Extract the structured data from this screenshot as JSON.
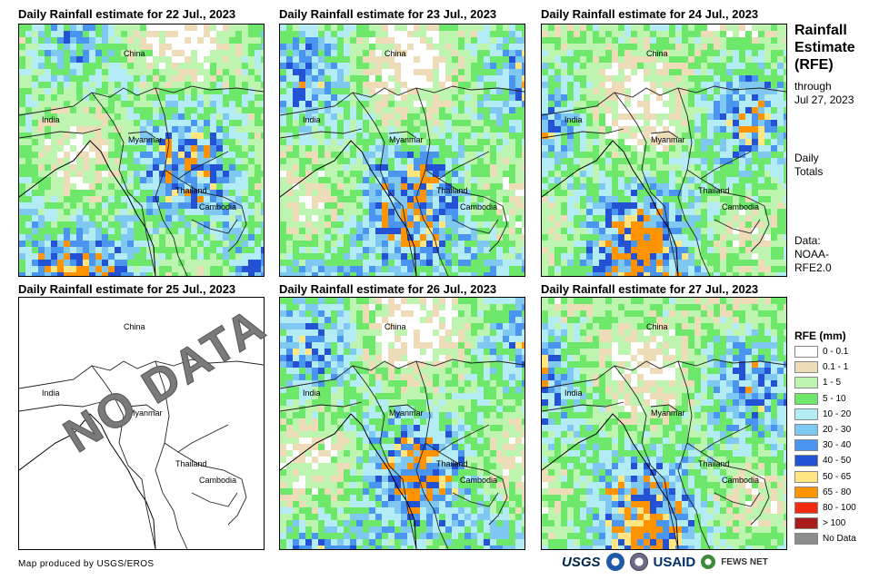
{
  "panels": [
    {
      "title": "Daily Rainfall estimate for 22 Jul., 2023",
      "has_data": true
    },
    {
      "title": "Daily Rainfall estimate for 23 Jul., 2023",
      "has_data": true
    },
    {
      "title": "Daily Rainfall estimate for 24 Jul., 2023",
      "has_data": true
    },
    {
      "title": "Daily Rainfall estimate for 25 Jul., 2023",
      "has_data": false
    },
    {
      "title": "Daily Rainfall estimate for 26 Jul., 2023",
      "has_data": true
    },
    {
      "title": "Daily Rainfall estimate for 27 Jul., 2023",
      "has_data": true
    }
  ],
  "map_labels": {
    "china": "China",
    "india": "India",
    "myanmar": "Myanmar",
    "thailand": "Thailand",
    "cambodia": "Cambodia"
  },
  "no_data_text": "NO DATA",
  "sidebar": {
    "title_line1": "Rainfall",
    "title_line2": "Estimate",
    "title_line3": "(RFE)",
    "through": "through",
    "date": "Jul 27, 2023",
    "daily": "Daily",
    "totals": "Totals",
    "data_label": "Data:",
    "data_source1": "NOAA-",
    "data_source2": "RFE2.0"
  },
  "legend": {
    "title": "RFE (mm)",
    "items": [
      {
        "label": "0 - 0.1",
        "color": "#ffffff"
      },
      {
        "label": "0.1 - 1",
        "color": "#eedcb8"
      },
      {
        "label": "1 - 5",
        "color": "#bdf5b0"
      },
      {
        "label": "5 - 10",
        "color": "#6ee86a"
      },
      {
        "label": "10 - 20",
        "color": "#b3ecf5"
      },
      {
        "label": "20 - 30",
        "color": "#7ec8f2"
      },
      {
        "label": "30 - 40",
        "color": "#4a95ef"
      },
      {
        "label": "40 - 50",
        "color": "#2452d4"
      },
      {
        "label": "50 - 65",
        "color": "#ffe680"
      },
      {
        "label": "65 - 80",
        "color": "#ff9400"
      },
      {
        "label": "80 - 100",
        "color": "#f22b10"
      },
      {
        "label": "> 100",
        "color": "#a81c1c"
      },
      {
        "label": "No Data",
        "color": "#8c8c8c"
      }
    ]
  },
  "credit": "Map produced by USGS/EROS",
  "logos": {
    "usgs": "USGS",
    "usaid": "USAID",
    "fews": "FEWS NET"
  }
}
